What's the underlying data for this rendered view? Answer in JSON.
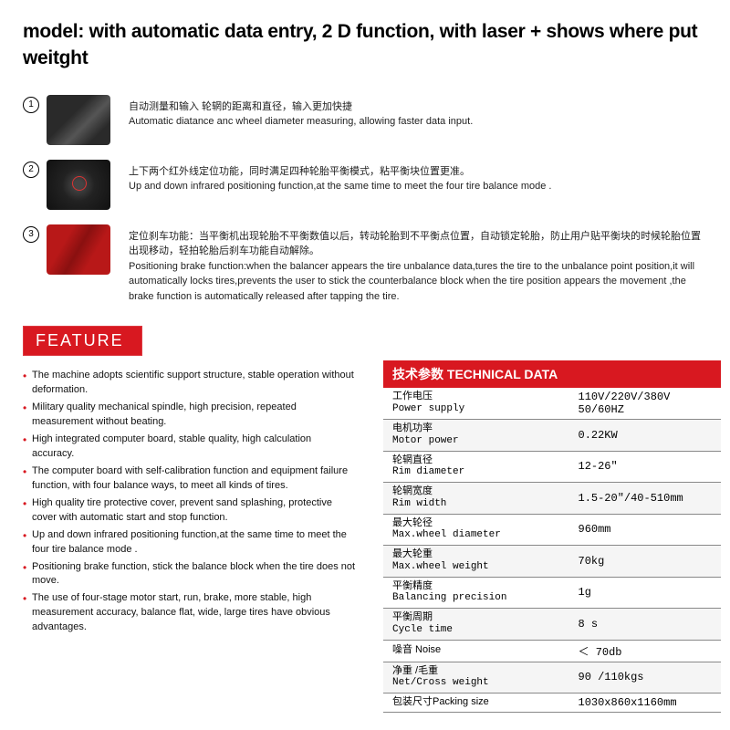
{
  "title": "model: with automatic data entry, 2 D function, with laser + shows where put weitght",
  "features_numbered": [
    {
      "num": "①",
      "cn": "自动测量和输入 轮辋的距离和直径，输入更加快捷",
      "en": "Automatic diatance anc wheel diameter measuring, allowing faster data input."
    },
    {
      "num": "②",
      "cn": "上下两个红外线定位功能，同时满足四种轮胎平衡模式，粘平衡块位置更准。",
      "en": "Up and down infrared positioning function,at the same time to meet the four tire balance mode ."
    },
    {
      "num": "③",
      "cn": "定位刹车功能：当平衡机出现轮胎不平衡数值以后，转动轮胎到不平衡点位置，自动锁定轮胎，防止用户贴平衡块的时候轮胎位置出现移动，轻拍轮胎后刹车功能自动解除。",
      "en": "Positioning brake function:when the balancer appears the tire unbalance data,tures the tire to the unbalance point position,it will automatically locks tires,prevents the user to stick the counterbalance block when the tire position appears the movement ,the brake function is automatically released after tapping the tire."
    }
  ],
  "feature_badge": "FEATURE",
  "feature_bullets": [
    "The machine adopts scientific support structure, stable operation without deformation.",
    "Military quality mechanical spindle, high precision, repeated measurement without beating.",
    "High integrated computer board, stable quality, high calculation accuracy.",
    "The computer board with self-calibration function and equipment failure function, with four balance ways, to meet all kinds of tires.",
    "High quality tire protective cover, prevent sand splashing, protective cover with automatic start and stop function.",
    "Up and down infrared positioning function,at the same time to meet the four tire balance mode .",
    "Positioning brake function, stick the balance block when the tire does not move.",
    "The use of four-stage motor start, run, brake, more stable, high measurement accuracy, balance flat, wide, large tires have obvious advantages."
  ],
  "tech_header": "技术参数 TECHNICAL DATA",
  "tech_rows": [
    {
      "cn": "工作电压",
      "en": "Power supply",
      "val": "110V/220V/380V\n   50/60HZ"
    },
    {
      "cn": "电机功率",
      "en": "Motor power",
      "val": "0.22KW"
    },
    {
      "cn": "轮辋直径",
      "en": "Rim diameter",
      "val": "12-26″"
    },
    {
      "cn": "轮辋宽度",
      "en": "Rim width",
      "val": "1.5-20″/40-510mm"
    },
    {
      "cn": "最大轮径",
      "en": "Max.wheel diameter",
      "val": "960mm"
    },
    {
      "cn": "最大轮重",
      "en": "Max.wheel weight",
      "val": "70kg"
    },
    {
      "cn": "平衡精度",
      "en": "Balancing precision",
      "val": "  1g"
    },
    {
      "cn": "平衡周期",
      "en": "Cycle time",
      "val": "8 s"
    },
    {
      "cn": "噪音  Noise",
      "en": "",
      "val": "＜ 70db"
    },
    {
      "cn": "净重 /毛重",
      "en": "Net/Cross weight",
      "val": "90 /110kgs"
    },
    {
      "cn": "包装尺寸Packing size",
      "en": "",
      "val": "1030x860x1160mm"
    }
  ],
  "colors": {
    "accent": "#d81820",
    "text": "#111111",
    "bg": "#ffffff"
  }
}
